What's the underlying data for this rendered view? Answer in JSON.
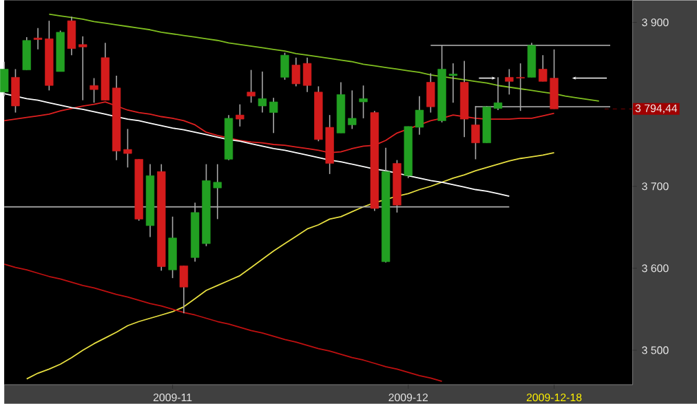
{
  "chart_data": {
    "type": "candlestick",
    "categories": [
      null,
      null,
      null,
      null,
      null,
      null,
      null,
      null,
      null,
      null,
      null,
      null,
      null,
      null,
      null,
      "2009-11",
      null,
      null,
      null,
      null,
      null,
      null,
      null,
      null,
      null,
      null,
      null,
      null,
      null,
      null,
      null,
      null,
      null,
      null,
      null,
      null,
      "2009-12",
      null,
      null,
      null,
      null,
      null,
      null,
      null,
      null,
      null,
      null,
      null,
      null,
      "2009-12-18",
      null,
      null,
      null,
      null,
      null,
      null
    ],
    "ohlc": [
      [
        3815,
        3852,
        3810,
        3843
      ],
      [
        3833,
        3843,
        3790,
        3798
      ],
      [
        3842,
        3882,
        3842,
        3878
      ],
      [
        3881,
        3893,
        3867,
        3879
      ],
      [
        3880,
        3902,
        3817,
        3823
      ],
      [
        3840,
        3890,
        3840,
        3888
      ],
      [
        3902,
        3907,
        3860,
        3868
      ],
      [
        3873,
        3883,
        3805,
        3870
      ],
      [
        3823,
        3832,
        3802,
        3818
      ],
      [
        3857,
        3875,
        3805,
        3805
      ],
      [
        3820,
        3835,
        3732,
        3743
      ],
      [
        3745,
        3770,
        3723,
        3740
      ],
      [
        3733,
        3733,
        3658,
        3660
      ],
      [
        3652,
        3727,
        3638,
        3713
      ],
      [
        3718,
        3727,
        3597,
        3602
      ],
      [
        3598,
        3663,
        3588,
        3637
      ],
      [
        3603,
        3603,
        3545,
        3577
      ],
      [
        3613,
        3680,
        3608,
        3668
      ],
      [
        3630,
        3727,
        3627,
        3707
      ],
      [
        3698,
        3727,
        3660,
        3705
      ],
      [
        3733,
        3787,
        3732,
        3783
      ],
      [
        3787,
        3800,
        3773,
        3782
      ],
      [
        3815,
        3842,
        3802,
        3810
      ],
      [
        3798,
        3840,
        3790,
        3807
      ],
      [
        3790,
        3808,
        3765,
        3803
      ],
      [
        3833,
        3863,
        3830,
        3860
      ],
      [
        3848,
        3857,
        3822,
        3825
      ],
      [
        3850,
        3857,
        3815,
        3823
      ],
      [
        3815,
        3822,
        3755,
        3757
      ],
      [
        3772,
        3787,
        3715,
        3728
      ],
      [
        3765,
        3827,
        3765,
        3812
      ],
      [
        3775,
        3817,
        3770,
        3783
      ],
      [
        3803,
        3823,
        3783,
        3807
      ],
      [
        3790,
        3792,
        3670,
        3673
      ],
      [
        3608,
        3747,
        3607,
        3718
      ],
      [
        3728,
        3732,
        3668,
        3677
      ],
      [
        3713,
        3773,
        3710,
        3773
      ],
      [
        3772,
        3810,
        3763,
        3793
      ],
      [
        3827,
        3838,
        3790,
        3797
      ],
      [
        3780,
        3872,
        3778,
        3843
      ],
      [
        3835,
        3850,
        3802,
        3837
      ],
      [
        3827,
        3853,
        3760,
        3782
      ],
      [
        3775,
        3798,
        3733,
        3753
      ],
      [
        3753,
        3798,
        3753,
        3797
      ],
      [
        3795,
        3833,
        3793,
        3802
      ],
      [
        3833,
        3843,
        3812,
        3828
      ],
      [
        3833,
        3850,
        3792,
        3832
      ],
      [
        3833,
        3875,
        3833,
        3872
      ],
      [
        3843,
        3860,
        3828,
        3828
      ],
      [
        3832,
        3867,
        3794.44,
        3794.44
      ],
      null,
      null,
      null,
      null,
      null,
      null
    ],
    "colors": [
      "#22a022",
      "#d41c1c",
      "#22a022",
      "#d41c1c",
      "#d41c1c",
      "#22a022",
      "#d41c1c",
      "#d41c1c",
      "#d41c1c",
      "#d41c1c",
      "#d41c1c",
      "#d41c1c",
      "#d41c1c",
      "#22a022",
      "#d41c1c",
      "#22a022",
      "#d41c1c",
      "#22a022",
      "#22a022",
      "#22a022",
      "#22a022",
      "#d41c1c",
      "#d41c1c",
      "#22a022",
      "#22a022",
      "#22a022",
      "#d41c1c",
      "#d41c1c",
      "#d41c1c",
      "#d41c1c",
      "#22a022",
      "#22a022",
      "#22a022",
      "#d41c1c",
      "#22a022",
      "#d41c1c",
      "#22a022",
      "#22a022",
      "#d41c1c",
      "#22a022",
      "#22a022",
      "#d41c1c",
      "#d41c1c",
      "#22a022",
      "#22a022",
      "#d41c1c",
      "#d41c1c",
      "#22a022",
      "#d41c1c",
      "#d41c1c",
      null,
      null,
      null,
      null,
      null,
      null
    ],
    "series": [
      {
        "type": "line",
        "color": "#e02020",
        "values": [
          3780,
          3782,
          3784,
          3786,
          3788,
          3792,
          3795,
          3798,
          3800,
          3803,
          3798,
          3793,
          3790,
          3788,
          3785,
          3783,
          3780,
          3775,
          3766,
          3762,
          3759,
          3756,
          3754,
          3753,
          3751,
          3750,
          3748,
          3746,
          3744,
          3741,
          3742,
          3746,
          3749,
          3750,
          3756,
          3765,
          3770,
          3775,
          3780,
          3783,
          3787,
          3785,
          3783,
          3782,
          3782,
          3782,
          3783,
          3783,
          3786,
          3789,
          null,
          null,
          null,
          null,
          null,
          null
        ]
      },
      {
        "type": "line",
        "color": "#e8e040",
        "values": [
          null,
          null,
          3465,
          3472,
          3477,
          3483,
          3491,
          3500,
          3508,
          3515,
          3522,
          3530,
          3535,
          3539,
          3543,
          3547,
          3553,
          3563,
          3573,
          3579,
          3585,
          3591,
          3601,
          3611,
          3621,
          3630,
          3639,
          3648,
          3653,
          3660,
          3663,
          3669,
          3675,
          3680,
          3684,
          3688,
          3691,
          3696,
          3700,
          3705,
          3710,
          3714,
          3719,
          3723,
          3727,
          3731,
          3734,
          3736,
          3738,
          3741,
          null,
          null,
          null,
          null,
          null,
          null
        ]
      },
      {
        "type": "line",
        "color": "#80c020",
        "values": [
          null,
          null,
          null,
          null,
          3910,
          3908,
          3906,
          3904,
          3901,
          3899,
          3897,
          3895,
          3893,
          3891,
          3888,
          3886,
          3884,
          3882,
          3880,
          3878,
          3875,
          3873,
          3871,
          3869,
          3867,
          3865,
          3862,
          3860,
          3858,
          3856,
          3854,
          3852,
          3849,
          3847,
          3845,
          3843,
          3841,
          3839,
          3836,
          3834,
          3832,
          3830,
          3828,
          3826,
          3823,
          3821,
          3819,
          3817,
          3815,
          3813,
          3810,
          3808,
          3806,
          3804,
          null,
          null
        ]
      },
      {
        "type": "line",
        "color": "#ffffff",
        "values": [
          3813,
          3810,
          3807,
          3805,
          3802,
          3799,
          3796,
          3794,
          3791,
          3788,
          3785,
          3782,
          3780,
          3777,
          3774,
          3771,
          3769,
          3766,
          3763,
          3760,
          3757,
          3755,
          3752,
          3749,
          3746,
          3744,
          3741,
          3738,
          3735,
          3732,
          3730,
          3727,
          3724,
          3721,
          3719,
          3716,
          3713,
          3710,
          3707,
          3705,
          3702,
          3699,
          3696,
          3694,
          3691,
          3688,
          null,
          null,
          null,
          null,
          null,
          null,
          null,
          null,
          null,
          null
        ]
      },
      {
        "type": "line",
        "color": "#b0b0b0",
        "values": [
          3675,
          3675,
          3675,
          3675,
          3675,
          3675,
          3675,
          3675,
          3675,
          3675,
          3675,
          3675,
          3675,
          3675,
          3675,
          3675,
          3675,
          3675,
          3675,
          3675,
          3675,
          3675,
          3675,
          3675,
          3675,
          3675,
          3675,
          3675,
          3675,
          3675,
          3675,
          3675,
          3675,
          3675,
          3675,
          3675,
          3675,
          3675,
          3675,
          3675,
          3675,
          3675,
          3675,
          3675,
          3675,
          3675,
          null,
          null,
          null,
          null,
          null,
          null,
          null,
          null,
          null,
          null
        ]
      },
      {
        "type": "line",
        "color": "#c01010",
        "values": [
          3605,
          3601,
          3598,
          3594,
          3590,
          3587,
          3583,
          3579,
          3576,
          3572,
          3568,
          3565,
          3561,
          3557,
          3554,
          3550,
          3546,
          3543,
          3539,
          3535,
          3532,
          3528,
          3524,
          3521,
          3517,
          3513,
          3510,
          3506,
          3502,
          3499,
          3495,
          3491,
          3488,
          3484,
          3480,
          3477,
          3473,
          3469,
          3466,
          3462,
          null,
          null,
          null,
          null,
          null,
          null,
          null,
          null,
          null,
          null,
          null,
          null,
          null,
          null,
          null,
          null
        ]
      },
      {
        "type": "line",
        "color": "#a0a0a0",
        "values": [
          null,
          null,
          null,
          null,
          null,
          null,
          null,
          null,
          null,
          null,
          null,
          null,
          null,
          null,
          null,
          null,
          null,
          null,
          null,
          null,
          null,
          null,
          null,
          null,
          null,
          null,
          null,
          null,
          null,
          null,
          null,
          null,
          null,
          null,
          null,
          null,
          null,
          null,
          3872,
          3872,
          3872,
          3872,
          3872,
          3872,
          3872,
          3872,
          3872,
          3872,
          3872,
          3872,
          3872,
          3872,
          3872,
          3872,
          3872,
          null
        ]
      },
      {
        "type": "line",
        "color": "#a0a0a0",
        "values": [
          null,
          null,
          null,
          null,
          null,
          null,
          null,
          null,
          null,
          null,
          null,
          null,
          null,
          null,
          null,
          null,
          null,
          null,
          null,
          null,
          null,
          null,
          null,
          null,
          null,
          null,
          null,
          null,
          null,
          null,
          null,
          null,
          null,
          null,
          null,
          null,
          null,
          null,
          null,
          null,
          null,
          null,
          3797,
          3797,
          3797,
          3797,
          3797,
          3797,
          3797,
          3797,
          3797,
          3797,
          3797,
          3797,
          3797,
          null
        ]
      }
    ],
    "ylim": [
      3458,
      3927
    ],
    "yticks": [
      {
        "value": 3500,
        "label": "3 500"
      },
      {
        "value": 3600,
        "label": "3 600"
      },
      {
        "value": 3700,
        "label": "3 700"
      },
      {
        "value": 3900,
        "label": "3 900"
      }
    ],
    "ref_lines": [
      {
        "axis": "y",
        "value": 3794.44,
        "label": "3 794,44",
        "color": "#a00000",
        "line_style": "dashed"
      }
    ]
  }
}
